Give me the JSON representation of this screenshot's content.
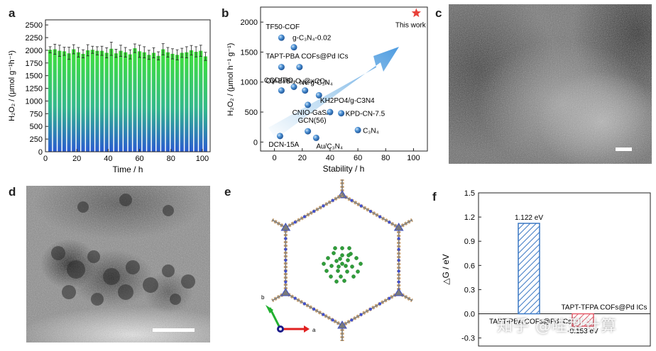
{
  "panels": {
    "a": {
      "label": "a"
    },
    "b": {
      "label": "b"
    },
    "c": {
      "label": "c"
    },
    "d": {
      "label": "d"
    },
    "e": {
      "label": "e",
      "axis_a": "a",
      "axis_b": "b"
    },
    "f": {
      "label": "f"
    }
  },
  "watermark": "知乎 @哇型计算",
  "colors": {
    "green": "#3ee03a",
    "blue": "#2a5bd0",
    "star": "#e8413a",
    "sphere": "#3d7fc4",
    "bar_blue": "#3b78c4",
    "bar_red": "#e25b6a"
  },
  "chart_data": [
    {
      "id": "a",
      "type": "bar",
      "xlabel": "Time / h",
      "ylabel": "H₂O₂ / (μmol g⁻¹h⁻¹)",
      "xlim": [
        0,
        105
      ],
      "ylim": [
        0,
        2600
      ],
      "xticks": [
        0,
        20,
        40,
        60,
        80,
        100
      ],
      "yticks": [
        0,
        250,
        500,
        750,
        1000,
        1250,
        1500,
        1750,
        2000,
        2250,
        2500
      ],
      "x": [
        3,
        6,
        9,
        12,
        15,
        18,
        21,
        24,
        27,
        30,
        33,
        36,
        39,
        42,
        45,
        48,
        51,
        54,
        57,
        60,
        63,
        66,
        69,
        72,
        75,
        78,
        81,
        84,
        87,
        90,
        93,
        96,
        99,
        102
      ],
      "values": [
        2010,
        2020,
        1990,
        1980,
        1940,
        2020,
        1960,
        1930,
        2000,
        2010,
        1990,
        1990,
        1950,
        2030,
        1940,
        1990,
        1960,
        1920,
        2040,
        1980,
        1960,
        1910,
        1950,
        1890,
        2020,
        1960,
        1930,
        1910,
        1950,
        1960,
        2000,
        1970,
        1990,
        1880
      ],
      "errors": [
        60,
        100,
        110,
        80,
        120,
        90,
        95,
        80,
        110,
        70,
        80,
        90,
        100,
        130,
        80,
        110,
        95,
        90,
        85,
        120,
        110,
        90,
        100,
        80,
        110,
        95,
        100,
        100,
        90,
        110,
        95,
        100,
        110,
        80
      ]
    },
    {
      "id": "b",
      "type": "scatter",
      "xlabel": "Stability / h",
      "ylabel": "H₂O₂ / (μmol h⁻¹ g⁻¹)",
      "xlim": [
        -10,
        110
      ],
      "ylim": [
        -150,
        2250
      ],
      "xticks": [
        0,
        20,
        40,
        60,
        80,
        100
      ],
      "yticks": [
        0,
        500,
        1000,
        1500,
        2000
      ],
      "points": [
        {
          "name": "TF50-COF",
          "x": 5,
          "y": 1740
        },
        {
          "name": "g-C₃N₄-0.02",
          "x": 14,
          "y": 1580
        },
        {
          "name": "TAPT-PBA COFs@Pd ICs",
          "x": 5,
          "y": 1250
        },
        {
          "name": "",
          "x": 18,
          "y": 1250
        },
        {
          "name": "OV-Bi/Bi₂O₂@xCO₃",
          "x": 5,
          "y": 860
        },
        {
          "name": "CQD/TiO₂",
          "x": 14,
          "y": 920
        },
        {
          "name": "Nv-g-C₃N₄",
          "x": 22,
          "y": 860
        },
        {
          "name": "",
          "x": 32,
          "y": 780
        },
        {
          "name": "CNIO-GaSA",
          "x": 24,
          "y": 620
        },
        {
          "name": "KH2PO4/g-C3N4",
          "x": 40,
          "y": 500
        },
        {
          "name": "KPD-CN-7.5",
          "x": 48,
          "y": 480
        },
        {
          "name": "GCN(56)",
          "x": 24,
          "y": 180
        },
        {
          "name": "C₃N₄",
          "x": 60,
          "y": 200
        },
        {
          "name": "DCN-15A",
          "x": 4,
          "y": 100
        },
        {
          "name": "Au/C₃N₄",
          "x": 30,
          "y": 70
        }
      ],
      "highlight": {
        "name": "This work",
        "x": 102,
        "y": 2150
      }
    },
    {
      "id": "f",
      "type": "bar",
      "ylabel": "△G / eV",
      "ylim": [
        -0.4,
        1.5
      ],
      "yticks": [
        -0.3,
        0.0,
        0.3,
        0.6,
        0.9,
        1.2,
        1.5
      ],
      "series": [
        {
          "name": "TAPT-PBA COFs@Pd ICs",
          "value": 1.122,
          "label": "1.122 eV"
        },
        {
          "name": "TAPT-TFPA COFs@Pd ICs",
          "value": -0.153,
          "label": "-0.153 eV"
        }
      ]
    }
  ]
}
